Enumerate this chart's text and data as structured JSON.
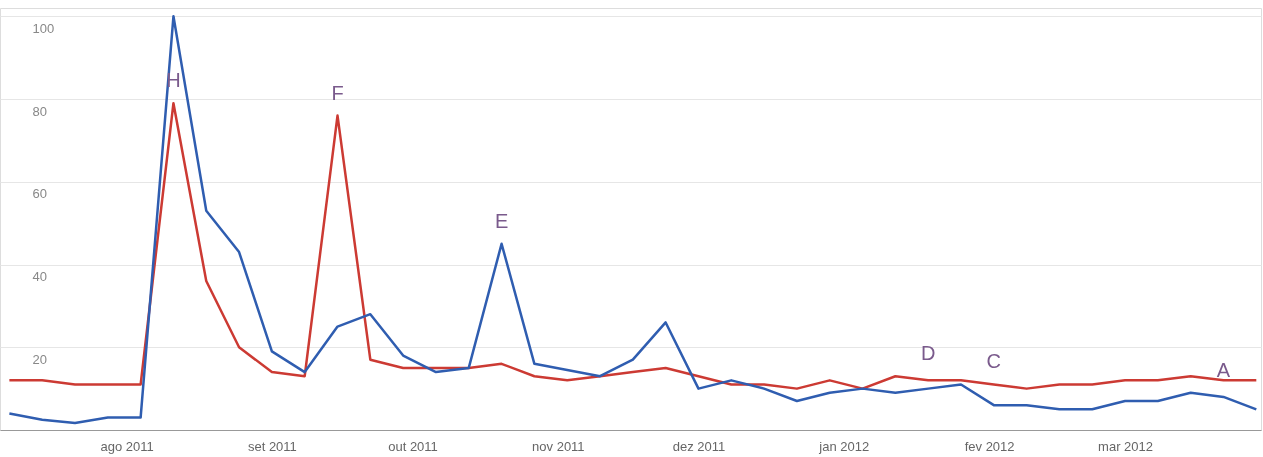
{
  "chart_data": {
    "type": "line",
    "x": [
      "2011-07-07",
      "2011-07-14",
      "2011-07-21",
      "2011-07-28",
      "2011-08-04",
      "2011-08-11",
      "2011-08-18",
      "2011-08-25",
      "2011-09-01",
      "2011-09-08",
      "2011-09-15",
      "2011-09-22",
      "2011-09-29",
      "2011-10-06",
      "2011-10-13",
      "2011-10-20",
      "2011-10-27",
      "2011-11-03",
      "2011-11-10",
      "2011-11-17",
      "2011-11-24",
      "2011-12-01",
      "2011-12-08",
      "2011-12-15",
      "2011-12-22",
      "2011-12-29",
      "2012-01-05",
      "2012-01-12",
      "2012-01-19",
      "2012-01-26",
      "2012-02-02",
      "2012-02-09",
      "2012-02-16",
      "2012-02-23",
      "2012-03-01",
      "2012-03-08",
      "2012-03-15",
      "2012-03-22",
      "2012-03-29"
    ],
    "series": [
      {
        "color": "#cc3a33",
        "values": [
          12,
          12,
          11,
          11,
          11,
          79,
          36,
          20,
          14,
          13,
          76,
          17,
          15,
          15,
          15,
          16,
          13,
          12,
          13,
          14,
          15,
          13,
          11,
          11,
          10,
          12,
          10,
          13,
          12,
          12,
          11,
          10,
          11,
          11,
          12,
          12,
          13,
          12,
          12
        ]
      },
      {
        "color": "#2f5db0",
        "values": [
          4,
          2.5,
          1.7,
          3,
          3,
          100,
          53,
          43,
          19,
          14,
          25,
          28,
          18,
          14,
          15,
          45,
          16,
          14.5,
          13,
          17,
          26,
          10,
          12,
          10,
          7,
          9,
          10,
          9,
          10,
          11,
          6,
          6,
          5,
          5,
          7,
          7,
          9,
          8,
          5
        ]
      }
    ],
    "xlim": [
      "2011-07-05",
      "2012-03-30"
    ],
    "xticks": [
      {
        "value": "2011-08-01",
        "label": "ago 2011"
      },
      {
        "value": "2011-09-01",
        "label": "set 2011"
      },
      {
        "value": "2011-10-01",
        "label": "out 2011"
      },
      {
        "value": "2011-11-01",
        "label": "nov 2011"
      },
      {
        "value": "2011-12-01",
        "label": "dez 2011"
      },
      {
        "value": "2012-01-01",
        "label": "jan 2012"
      },
      {
        "value": "2012-02-01",
        "label": "fev 2012"
      },
      {
        "value": "2012-03-01",
        "label": "mar 2012"
      }
    ],
    "ylim": [
      0,
      102
    ],
    "yticks": [
      20,
      40,
      60,
      80,
      100
    ],
    "grid": "y",
    "legend": false,
    "line_style": "solid",
    "annotations": [
      {
        "text": "H",
        "x": "2011-08-11",
        "y": 79
      },
      {
        "text": "F",
        "x": "2011-09-15",
        "y": 76
      },
      {
        "text": "E",
        "x": "2011-10-20",
        "y": 45
      },
      {
        "text": "D",
        "x": "2012-01-19",
        "y": 13
      },
      {
        "text": "C",
        "x": "2012-02-02",
        "y": 11
      },
      {
        "text": "A",
        "x": "2012-03-22",
        "y": 9
      }
    ]
  }
}
